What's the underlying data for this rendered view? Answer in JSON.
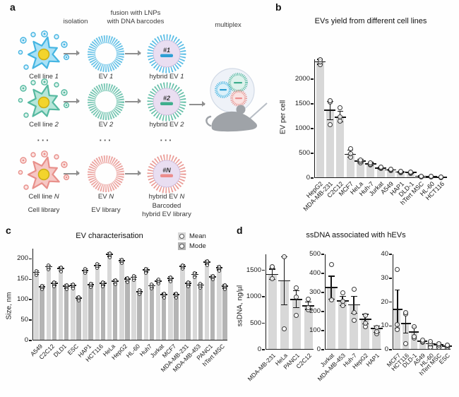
{
  "panels": {
    "a": "a",
    "b": "b",
    "c": "c",
    "d": "d"
  },
  "panel_a": {
    "headers": {
      "isolation": "isolation",
      "fusion": "fusion with LNPs\nwith DNA barcodes",
      "multiplex": "multiplex"
    },
    "rows": [
      {
        "cell_label": "Cell line",
        "ev_label": "EV",
        "hybrid_label": "hybrid EV",
        "num": "1",
        "barcode": "#1",
        "color": "#45b5e2",
        "cell_fill": "#a9e1f6",
        "tint": "#dcf1fb",
        "barcode_color": "#2e9fd4"
      },
      {
        "cell_label": "Cell line",
        "ev_label": "EV",
        "hybrid_label": "hybrid EV",
        "num": "2",
        "barcode": "#2",
        "color": "#55b9a0",
        "cell_fill": "#b7e6d9",
        "tint": "#ddf2ec",
        "barcode_color": "#3fae8d"
      },
      {
        "cell_label": "Cell line",
        "ev_label": "EV",
        "hybrid_label": "hybrid EV",
        "num": "N",
        "barcode": "#N",
        "color": "#e8908b",
        "cell_fill": "#f6c7c4",
        "tint": "#fbe3e1",
        "barcode_color": "#ec8d8d"
      }
    ],
    "ellipsis": "···",
    "footer": [
      "Cell library",
      "EV library",
      "Barcoded\nhybrid EV library"
    ]
  },
  "colors": {
    "bar_light": "#d8d8d8",
    "bar_dark": "#b4b4b4",
    "axis": "#1a1a1a",
    "nucleus": "#f3d42c",
    "nucleus_edge": "#c9ad17",
    "hybrid_fill": "#e9def1",
    "hybrid_edge": "#cbb9da",
    "droplet_fill": "#eef2f8",
    "droplet_edge": "#d2dae6",
    "mouse": "#9fa3a8",
    "needle": "#b7bdc5"
  },
  "chart_data": [
    {
      "id": "b",
      "type": "bar",
      "title": "EVs yield from different cell lines",
      "xlabel": "",
      "ylabel": "EV per cell",
      "ylim": [
        0,
        2400
      ],
      "yticks": [
        0,
        500,
        1000,
        1500,
        2000
      ],
      "grid": false,
      "legend_position": "none",
      "categories": [
        "HepG2",
        "MDA-MB-231",
        "C2C12",
        "MCF7",
        "HeLa",
        "Huh-7",
        "Jurkat",
        "A549",
        "HAP1",
        "DLD-1",
        "hTert MSC",
        "HL-60",
        "HCT116"
      ],
      "values": [
        2350,
        1370,
        1230,
        480,
        340,
        285,
        205,
        165,
        120,
        110,
        35,
        25,
        12
      ],
      "err_low": [
        2300,
        1180,
        1130,
        420,
        305,
        255,
        185,
        148,
        108,
        95,
        22,
        15,
        6
      ],
      "err_high": [
        2400,
        1550,
        1350,
        560,
        375,
        315,
        225,
        180,
        132,
        125,
        48,
        35,
        18
      ],
      "points": [
        [
          2290,
          2350,
          2390
        ],
        [
          1080,
          1530,
          1570
        ],
        [
          1150,
          1240,
          1420
        ],
        [
          420,
          500,
          590
        ],
        [
          310,
          340,
          370
        ],
        [
          260,
          285,
          310
        ],
        [
          190,
          205,
          220
        ],
        [
          150,
          165,
          178
        ],
        [
          110,
          120,
          130
        ],
        [
          98,
          110,
          122
        ],
        [
          25,
          40
        ],
        [
          18,
          30
        ],
        [
          8,
          15
        ]
      ]
    },
    {
      "id": "c",
      "type": "bar",
      "title": "EV characterisation",
      "xlabel": "",
      "ylabel": "Size, nm",
      "ylim": [
        0,
        225
      ],
      "yticks": [
        0,
        50,
        100,
        150,
        200
      ],
      "grid": false,
      "legend_position": "top-right",
      "legend": [
        "Mean",
        "Mode"
      ],
      "categories": [
        "A549",
        "C2C12",
        "DLD1",
        "ESC",
        "HAP1",
        "HCT116",
        "HeLa",
        "HepG2",
        "HL-60",
        "Huh7",
        "Jurkat",
        "MCF7",
        "MDA-MB-231",
        "MDA-MB-453",
        "PANC1",
        "hTert MSC"
      ],
      "series": [
        {
          "name": "Mean",
          "values": [
            167,
            181,
            176,
            135,
            172,
            184,
            211,
            196,
            155,
            173,
            146,
            152,
            182,
            162,
            192,
            178
          ]
        },
        {
          "name": "Mode",
          "values": [
            132,
            140,
            133,
            104,
            137,
            140,
            145,
            150,
            120,
            134,
            112,
            112,
            140,
            136,
            156,
            133
          ]
        }
      ]
    },
    {
      "id": "d1",
      "type": "bar",
      "title": "ssDNA associated with hEVs",
      "xlabel": "",
      "ylabel": "ssDNA, ng/µl",
      "ylim": [
        0,
        1800
      ],
      "yticks": [
        0,
        500,
        1000,
        1500
      ],
      "grid": false,
      "legend_position": "none",
      "categories": [
        "MDA-MB-231",
        "HeLa",
        "PANC1",
        "C2C12"
      ],
      "values": [
        1420,
        1300,
        950,
        830
      ],
      "err_low": [
        1330,
        850,
        790,
        760
      ],
      "err_high": [
        1520,
        1750,
        1110,
        900
      ],
      "points": [
        [
          1340,
          1550,
          1570
        ],
        [
          390,
          1750
        ],
        [
          650,
          1000,
          1170
        ],
        [
          760,
          800,
          960
        ]
      ]
    },
    {
      "id": "d2",
      "type": "bar",
      "title": "",
      "xlabel": "",
      "ylabel": "",
      "ylim": [
        0,
        500
      ],
      "yticks": [
        0,
        100,
        200,
        300,
        400,
        500
      ],
      "grid": false,
      "legend_position": "none",
      "categories": [
        "Jurkat",
        "MDA-MB-453",
        "Huh-7",
        "HepG2",
        "HAP1"
      ],
      "values": [
        325,
        255,
        235,
        160,
        110
      ],
      "err_low": [
        265,
        230,
        190,
        135,
        90
      ],
      "err_high": [
        385,
        280,
        280,
        185,
        125
      ],
      "points": [
        [
          260,
          445
        ],
        [
          230,
          255,
          300
        ],
        [
          155,
          195,
          315
        ],
        [
          120,
          140,
          180
        ],
        [
          85,
          95,
          115
        ]
      ]
    },
    {
      "id": "d3",
      "type": "bar",
      "title": "",
      "xlabel": "",
      "ylabel": "",
      "ylim": [
        0,
        40
      ],
      "yticks": [
        0,
        10,
        20,
        30,
        40
      ],
      "grid": false,
      "legend_position": "none",
      "categories": [
        "MCF7",
        "HCT116",
        "DLD-1",
        "A549",
        "HL-60",
        "hTert MSC",
        "ESC"
      ],
      "values": [
        17,
        11,
        7.5,
        3.5,
        2.5,
        2,
        1.5
      ],
      "err_low": [
        9,
        7,
        5.5,
        3,
        1.5,
        1.2,
        1
      ],
      "err_high": [
        25,
        15.5,
        9.5,
        4,
        3.5,
        2.8,
        2
      ],
      "points": [
        [
          8.5,
          10.5,
          33.5
        ],
        [
          2.5,
          15,
          15.5
        ],
        [
          5,
          5.5,
          9.5
        ],
        [
          3,
          3.5,
          4
        ],
        [
          1,
          2.5,
          3.5
        ],
        [
          1,
          2,
          2.5
        ],
        [
          1,
          1.5,
          2
        ]
      ]
    }
  ]
}
